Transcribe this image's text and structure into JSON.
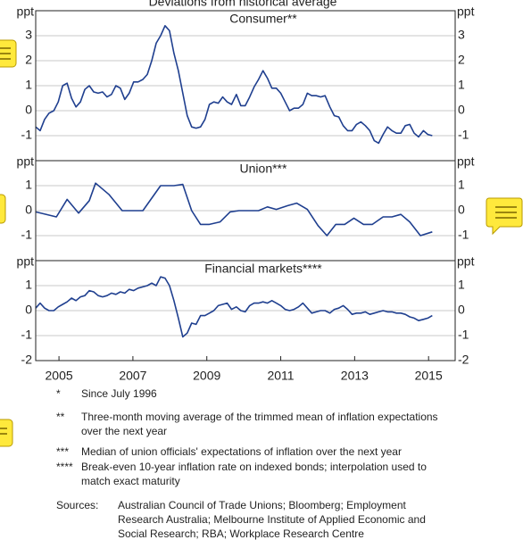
{
  "title": "Deviations from historical average",
  "chart_data": [
    {
      "type": "line",
      "title": "Consumer**",
      "y_unit": "ppt",
      "color": "#1f3f8f",
      "xlim": [
        2004.37,
        2015.72
      ],
      "ylim": [
        -2,
        4
      ],
      "yticks": [
        -1,
        0,
        1,
        2,
        3
      ],
      "grid": true,
      "x": [
        2004.37,
        2004.49,
        2004.61,
        2004.73,
        2004.86,
        2004.98,
        2005.1,
        2005.22,
        2005.34,
        2005.46,
        2005.58,
        2005.7,
        2005.82,
        2005.94,
        2006.06,
        2006.18,
        2006.3,
        2006.42,
        2006.54,
        2006.66,
        2006.78,
        2006.9,
        2007.02,
        2007.14,
        2007.27,
        2007.39,
        2007.51,
        2007.63,
        2007.75,
        2007.87,
        2007.99,
        2008.11,
        2008.23,
        2008.35,
        2008.47,
        2008.59,
        2008.71,
        2008.83,
        2008.95,
        2009.07,
        2009.19,
        2009.31,
        2009.43,
        2009.55,
        2009.67,
        2009.8,
        2009.92,
        2010.04,
        2010.16,
        2010.28,
        2010.4,
        2010.52,
        2010.64,
        2010.76,
        2010.88,
        2011.0,
        2011.12,
        2011.24,
        2011.36,
        2011.48,
        2011.6,
        2011.72,
        2011.84,
        2011.96,
        2012.08,
        2012.2,
        2012.33,
        2012.45,
        2012.57,
        2012.69,
        2012.81,
        2012.93,
        2013.05,
        2013.17,
        2013.29,
        2013.41,
        2013.53,
        2013.65,
        2013.77,
        2013.89,
        2014.01,
        2014.13,
        2014.25,
        2014.37,
        2014.49,
        2014.61,
        2014.73,
        2014.86,
        2014.98,
        2015.1
      ],
      "values": [
        -0.65,
        -0.8,
        -0.35,
        -0.1,
        0,
        0.35,
        1.0,
        1.1,
        0.5,
        0.15,
        0.35,
        0.85,
        1.0,
        0.75,
        0.7,
        0.75,
        0.55,
        0.65,
        1.0,
        0.9,
        0.45,
        0.7,
        1.15,
        1.15,
        1.25,
        1.45,
        2.0,
        2.7,
        3.0,
        3.4,
        3.2,
        2.3,
        1.6,
        0.7,
        -0.2,
        -0.65,
        -0.7,
        -0.65,
        -0.35,
        0.25,
        0.35,
        0.3,
        0.55,
        0.35,
        0.25,
        0.65,
        0.2,
        0.2,
        0.55,
        0.95,
        1.25,
        1.6,
        1.3,
        0.9,
        0.9,
        0.7,
        0.35,
        0,
        0.1,
        0.1,
        0.25,
        0.7,
        0.6,
        0.6,
        0.55,
        0.6,
        0.15,
        -0.2,
        -0.25,
        -0.6,
        -0.8,
        -0.8,
        -0.55,
        -0.45,
        -0.6,
        -0.8,
        -1.2,
        -1.3,
        -0.95,
        -0.65,
        -0.8,
        -0.9,
        -0.9,
        -0.6,
        -0.55,
        -0.9,
        -1.05,
        -0.8,
        -0.95,
        -1.0
      ]
    },
    {
      "type": "line",
      "title": "Union***",
      "y_unit": "ppt",
      "color": "#1f3f8f",
      "xlim": [
        2004.37,
        2015.72
      ],
      "ylim": [
        -2,
        2
      ],
      "yticks": [
        -1,
        0,
        1
      ],
      "grid": true,
      "x": [
        2004.37,
        2004.93,
        2005.22,
        2005.53,
        2005.82,
        2005.99,
        2006.35,
        2006.71,
        2007.27,
        2007.75,
        2008.11,
        2008.35,
        2008.59,
        2008.83,
        2009.07,
        2009.36,
        2009.63,
        2009.87,
        2010.4,
        2010.64,
        2010.88,
        2011.19,
        2011.43,
        2011.72,
        2012.01,
        2012.25,
        2012.49,
        2012.73,
        2012.98,
        2013.24,
        2013.48,
        2013.77,
        2014.01,
        2014.25,
        2014.49,
        2014.78,
        2015.1
      ],
      "values": [
        -0.05,
        -0.25,
        0.45,
        -0.1,
        0.4,
        1.1,
        0.65,
        0,
        0,
        1.0,
        1.0,
        1.05,
        0,
        -0.55,
        -0.55,
        -0.45,
        -0.05,
        0,
        0,
        0.15,
        0.05,
        0.2,
        0.3,
        0.05,
        -0.6,
        -1.0,
        -0.55,
        -0.55,
        -0.3,
        -0.55,
        -0.55,
        -0.25,
        -0.25,
        -0.15,
        -0.45,
        -1.0,
        -0.85
      ]
    },
    {
      "type": "line",
      "title": "Financial markets****",
      "y_unit": "ppt",
      "color": "#1f3f8f",
      "xlim": [
        2004.37,
        2015.72
      ],
      "ylim": [
        -2,
        2
      ],
      "yticks": [
        -2,
        -1,
        0,
        1
      ],
      "grid": true,
      "xticks": [
        2005,
        2007,
        2009,
        2011,
        2013,
        2015
      ],
      "x": [
        2004.37,
        2004.49,
        2004.61,
        2004.73,
        2004.86,
        2004.98,
        2005.1,
        2005.22,
        2005.34,
        2005.46,
        2005.58,
        2005.7,
        2005.82,
        2005.94,
        2006.06,
        2006.18,
        2006.3,
        2006.42,
        2006.54,
        2006.66,
        2006.78,
        2006.9,
        2007.02,
        2007.14,
        2007.27,
        2007.39,
        2007.51,
        2007.63,
        2007.75,
        2007.87,
        2007.99,
        2008.11,
        2008.23,
        2008.35,
        2008.47,
        2008.59,
        2008.71,
        2008.83,
        2008.95,
        2009.07,
        2009.19,
        2009.31,
        2009.43,
        2009.55,
        2009.67,
        2009.8,
        2009.92,
        2010.04,
        2010.16,
        2010.28,
        2010.4,
        2010.52,
        2010.64,
        2010.76,
        2010.88,
        2011.0,
        2011.12,
        2011.24,
        2011.36,
        2011.48,
        2011.6,
        2011.72,
        2011.84,
        2011.96,
        2012.08,
        2012.2,
        2012.33,
        2012.45,
        2012.57,
        2012.69,
        2012.81,
        2012.93,
        2013.05,
        2013.17,
        2013.29,
        2013.41,
        2013.53,
        2013.65,
        2013.77,
        2013.89,
        2014.01,
        2014.13,
        2014.25,
        2014.37,
        2014.49,
        2014.61,
        2014.73,
        2014.86,
        2014.98,
        2015.1
      ],
      "values": [
        0.1,
        0.3,
        0.1,
        0,
        0,
        0.15,
        0.25,
        0.35,
        0.5,
        0.4,
        0.55,
        0.6,
        0.8,
        0.75,
        0.6,
        0.55,
        0.6,
        0.7,
        0.65,
        0.75,
        0.7,
        0.85,
        0.8,
        0.9,
        0.95,
        1.0,
        1.1,
        1.0,
        1.35,
        1.3,
        1.0,
        0.4,
        -0.3,
        -1.05,
        -0.9,
        -0.5,
        -0.55,
        -0.2,
        -0.2,
        -0.1,
        0,
        0.2,
        0.25,
        0.3,
        0.05,
        0.15,
        0,
        -0.05,
        0.2,
        0.3,
        0.3,
        0.35,
        0.3,
        0.4,
        0.3,
        0.2,
        0.05,
        0,
        0.05,
        0.15,
        0.3,
        0.1,
        -0.1,
        -0.05,
        0,
        0,
        -0.1,
        0.05,
        0.1,
        0.2,
        0.05,
        -0.15,
        -0.1,
        -0.1,
        -0.05,
        -0.15,
        -0.1,
        -0.05,
        0,
        -0.05,
        -0.05,
        -0.1,
        -0.1,
        -0.15,
        -0.25,
        -0.3,
        -0.4,
        -0.35,
        -0.3,
        -0.2
      ]
    }
  ],
  "notes": [
    {
      "mark": "*",
      "text": "Since July 1996"
    },
    {
      "mark": "**",
      "text": "Three-month moving average of the trimmed mean of inflation expectations over the next year"
    },
    {
      "mark": "***",
      "text": "Median of union officials' expectations of inflation over the next year"
    },
    {
      "mark": "****",
      "text": "Break-even 10-year inflation rate on indexed bonds; interpolation used to match exact maturity"
    }
  ],
  "sources": {
    "label": "Sources:",
    "text": "Australian Council of Trade Unions; Bloomberg; Employment Research Australia; Melbourne Institute of Applied Economic and Social Research; RBA; Workplace Research Centre"
  }
}
